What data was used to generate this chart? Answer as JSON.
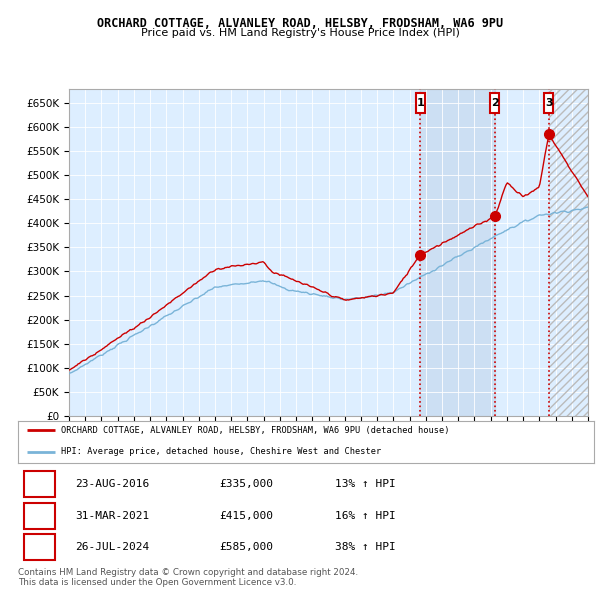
{
  "title": "ORCHARD COTTAGE, ALVANLEY ROAD, HELSBY, FRODSHAM, WA6 9PU",
  "subtitle": "Price paid vs. HM Land Registry's House Price Index (HPI)",
  "ylim": [
    0,
    680000
  ],
  "yticks": [
    0,
    50000,
    100000,
    150000,
    200000,
    250000,
    300000,
    350000,
    400000,
    450000,
    500000,
    550000,
    600000,
    650000
  ],
  "hpi_color": "#7ab4d8",
  "price_color": "#cc0000",
  "shade_color": "#ddeeff",
  "legend_label_price": "ORCHARD COTTAGE, ALVANLEY ROAD, HELSBY, FRODSHAM, WA6 9PU (detached house)",
  "legend_label_hpi": "HPI: Average price, detached house, Cheshire West and Chester",
  "transactions": [
    {
      "label": "1",
      "date": "23-AUG-2016",
      "price": 335000,
      "hpi_pct": "13% ↑ HPI",
      "x": 2016.65
    },
    {
      "label": "2",
      "date": "31-MAR-2021",
      "price": 415000,
      "hpi_pct": "16% ↑ HPI",
      "x": 2021.25
    },
    {
      "label": "3",
      "date": "26-JUL-2024",
      "price": 585000,
      "hpi_pct": "38% ↑ HPI",
      "x": 2024.58
    }
  ],
  "copyright_text": "Contains HM Land Registry data © Crown copyright and database right 2024.\nThis data is licensed under the Open Government Licence v3.0.",
  "background_color": "#ffffff",
  "plot_bg_color": "#ddeeff",
  "xmin": 1995,
  "xmax": 2027
}
